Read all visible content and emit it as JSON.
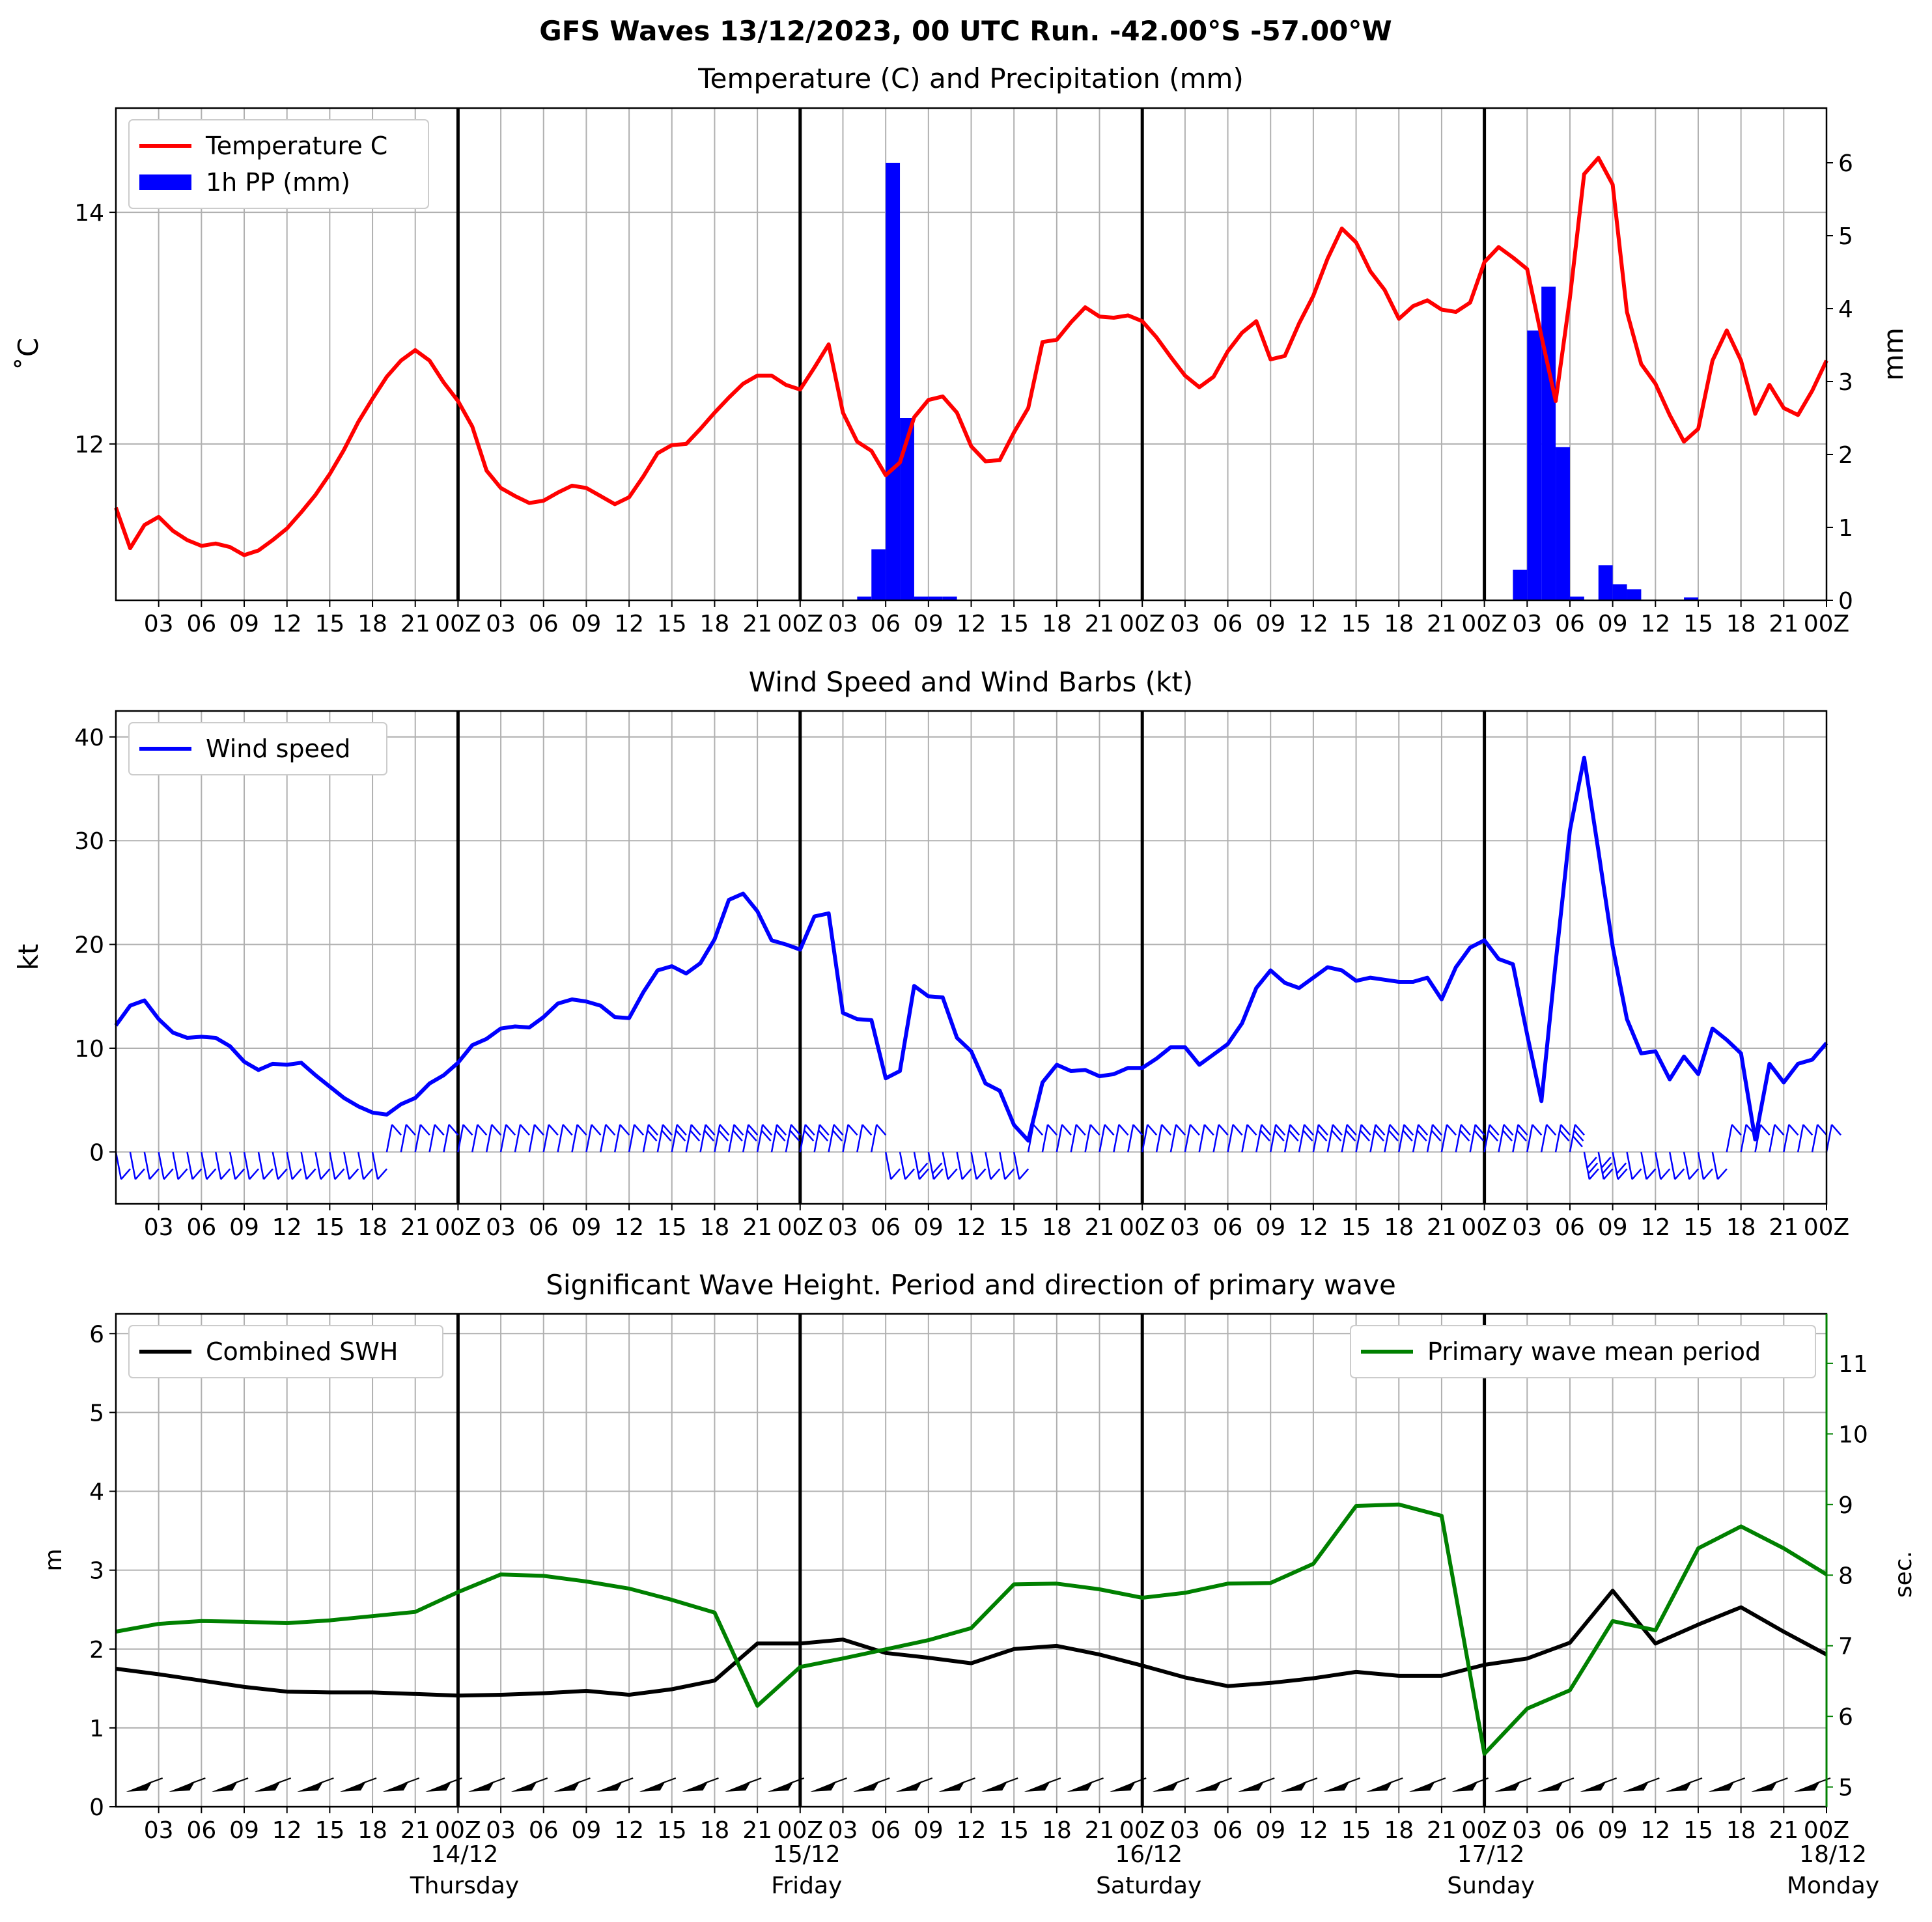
{
  "figure_title": "GFS Waves 13/12/2023, 00 UTC Run. -42.00°S -57.00°W",
  "hour_tick_labels": [
    "03",
    "06",
    "09",
    "12",
    "15",
    "18",
    "21",
    "00Z",
    "03",
    "06",
    "09",
    "12",
    "15",
    "18",
    "21",
    "00Z",
    "03",
    "06",
    "09",
    "12",
    "15",
    "18",
    "21",
    "00Z",
    "03",
    "06",
    "09",
    "12",
    "15",
    "18",
    "21",
    "00Z",
    "03",
    "06",
    "09",
    "12",
    "15",
    "18",
    "21",
    "00Z"
  ],
  "day_labels": [
    {
      "date": "14/12",
      "weekday": "Thursday"
    },
    {
      "date": "15/12",
      "weekday": "Friday"
    },
    {
      "date": "16/12",
      "weekday": "Saturday"
    },
    {
      "date": "17/12",
      "weekday": "Sunday"
    },
    {
      "date": "18/12",
      "weekday": "Monday"
    }
  ],
  "colors": {
    "temperature": "#ff0000",
    "precip": "#0000ff",
    "wind": "#0000ff",
    "swh": "#000000",
    "period": "#008000",
    "grid": "#b0b0b0"
  },
  "chart_data": [
    {
      "type": "line",
      "title": "Temperature (C) and Precipitation (mm)",
      "ylabel": "$^\\circ$C",
      "ylabel_display": "˚C",
      "y2label": "mm",
      "x_unit": "hours from 13/12/2023 00 UTC",
      "xlim": [
        0,
        120
      ],
      "ylim": [
        10.65,
        14.9
      ],
      "y2lim": [
        0,
        6.75
      ],
      "yticks": [
        12,
        14
      ],
      "y2ticks": [
        0,
        1,
        2,
        3,
        4,
        5,
        6
      ],
      "grid": true,
      "legend_position": "upper-left",
      "legend": [
        "Temperature C",
        "1h PP (mm)"
      ],
      "series": [
        {
          "name": "Temperature C",
          "kind": "line",
          "x": [
            0,
            1,
            2,
            3,
            4,
            5,
            6,
            7,
            8,
            9,
            10,
            11,
            12,
            13,
            14,
            15,
            16,
            17,
            18,
            19,
            20,
            21,
            22,
            23,
            24,
            25,
            26,
            27,
            28,
            29,
            30,
            31,
            32,
            33,
            34,
            35,
            36,
            37,
            38,
            39,
            40,
            41,
            42,
            43,
            44,
            45,
            46,
            47,
            48,
            49,
            50,
            51,
            52,
            53,
            54,
            55,
            56,
            57,
            58,
            59,
            60,
            61,
            62,
            63,
            64,
            65,
            66,
            67,
            68,
            69,
            70,
            71,
            72,
            73,
            74,
            75,
            76,
            77,
            78,
            79,
            80,
            81,
            82,
            83,
            84,
            85,
            86,
            87,
            88,
            89,
            90,
            91,
            92,
            93,
            94,
            95,
            96,
            97,
            98,
            99,
            100,
            101,
            102,
            103,
            104,
            105,
            106,
            107,
            108,
            109,
            110,
            111,
            112,
            113,
            114,
            115,
            116,
            117,
            118,
            119,
            120
          ],
          "values": [
            11.45,
            11.1,
            11.3,
            11.37,
            11.25,
            11.17,
            11.12,
            11.14,
            11.11,
            11.04,
            11.08,
            11.17,
            11.27,
            11.41,
            11.56,
            11.74,
            11.95,
            12.19,
            12.39,
            12.58,
            12.72,
            12.81,
            12.72,
            12.53,
            12.37,
            12.15,
            11.77,
            11.62,
            11.55,
            11.49,
            11.51,
            11.58,
            11.64,
            11.62,
            11.55,
            11.48,
            11.54,
            11.72,
            11.92,
            11.99,
            12.0,
            12.13,
            12.27,
            12.4,
            12.52,
            12.59,
            12.59,
            12.51,
            12.47,
            12.66,
            12.86,
            12.27,
            12.02,
            11.94,
            11.73,
            11.84,
            12.23,
            12.38,
            12.41,
            12.27,
            11.98,
            11.85,
            11.86,
            12.1,
            12.31,
            12.88,
            12.9,
            13.05,
            13.18,
            13.1,
            13.09,
            13.11,
            13.06,
            12.92,
            12.75,
            12.59,
            12.49,
            12.58,
            12.8,
            12.96,
            13.06,
            12.73,
            12.76,
            13.04,
            13.28,
            13.6,
            13.86,
            13.74,
            13.49,
            13.33,
            13.08,
            13.19,
            13.24,
            13.16,
            13.14,
            13.22,
            13.57,
            13.7,
            13.61,
            13.51,
            12.93,
            12.37,
            13.26,
            14.33,
            14.47,
            14.24,
            13.14,
            12.69,
            12.52,
            12.25,
            12.02,
            12.13,
            12.72,
            12.98,
            12.72,
            12.26,
            12.51,
            12.31,
            12.25,
            12.46,
            12.72
          ]
        },
        {
          "name": "1h PP (mm)",
          "kind": "bar",
          "axis": "right",
          "x": [
            53,
            54,
            55,
            56,
            57,
            58,
            59,
            99,
            100,
            101,
            102,
            103,
            105,
            106,
            107,
            111
          ],
          "values": [
            0.05,
            0.7,
            6.0,
            2.5,
            0.05,
            0.05,
            0.05,
            0.42,
            3.7,
            4.3,
            2.1,
            0.05,
            0.48,
            0.22,
            0.15,
            0.04
          ]
        }
      ]
    },
    {
      "type": "line",
      "title": "Wind Speed and Wind Barbs (kt)",
      "ylabel": "kt",
      "x_unit": "hours from 13/12/2023 00 UTC",
      "xlim": [
        0,
        120
      ],
      "ylim": [
        -5,
        42.5
      ],
      "yticks": [
        0,
        10,
        20,
        30,
        40
      ],
      "grid": true,
      "legend_position": "upper-left",
      "legend": [
        "Wind speed"
      ],
      "series": [
        {
          "name": "Wind speed",
          "x": [
            0,
            1,
            2,
            3,
            4,
            5,
            6,
            7,
            8,
            9,
            10,
            11,
            12,
            13,
            14,
            15,
            16,
            17,
            18,
            19,
            20,
            21,
            22,
            23,
            24,
            25,
            26,
            27,
            28,
            29,
            30,
            31,
            32,
            33,
            34,
            35,
            36,
            37,
            38,
            39,
            40,
            41,
            42,
            43,
            44,
            45,
            46,
            47,
            48,
            49,
            50,
            51,
            52,
            53,
            54,
            55,
            56,
            57,
            58,
            59,
            60,
            61,
            62,
            63,
            64,
            65,
            66,
            67,
            68,
            69,
            70,
            71,
            72,
            73,
            74,
            75,
            76,
            77,
            78,
            79,
            80,
            81,
            82,
            83,
            84,
            85,
            86,
            87,
            88,
            89,
            90,
            91,
            92,
            93,
            94,
            95,
            96,
            97,
            98,
            99,
            100,
            101,
            102,
            103,
            104,
            105,
            106,
            107,
            108,
            109,
            110,
            111,
            112,
            113,
            114,
            115,
            116,
            117,
            118,
            119,
            120
          ],
          "values": [
            12.2,
            14.1,
            14.6,
            12.8,
            11.5,
            11.0,
            11.1,
            11.0,
            10.2,
            8.7,
            7.9,
            8.5,
            8.4,
            8.6,
            7.4,
            6.3,
            5.2,
            4.4,
            3.8,
            3.6,
            4.6,
            5.2,
            6.6,
            7.4,
            8.6,
            10.3,
            10.9,
            11.9,
            12.1,
            12.0,
            13.0,
            14.3,
            14.7,
            14.5,
            14.1,
            13.0,
            12.9,
            15.4,
            17.5,
            17.9,
            17.2,
            18.2,
            20.5,
            24.3,
            24.9,
            23.2,
            20.4,
            20.0,
            19.5,
            22.7,
            23.0,
            13.4,
            12.8,
            12.7,
            7.1,
            7.8,
            16.0,
            15.0,
            14.9,
            11.0,
            9.7,
            6.6,
            5.9,
            2.6,
            1.1,
            6.7,
            8.4,
            7.8,
            7.9,
            7.3,
            7.5,
            8.1,
            8.1,
            9.0,
            10.1,
            10.1,
            8.4,
            9.4,
            10.4,
            12.4,
            15.8,
            17.5,
            16.3,
            15.8,
            16.8,
            17.8,
            17.5,
            16.5,
            16.8,
            16.6,
            16.4,
            16.4,
            16.8,
            14.7,
            17.8,
            19.7,
            20.4,
            18.6,
            18.1,
            11.3,
            4.9,
            18.3,
            31.0,
            38.0,
            29.0,
            19.8,
            12.8,
            9.5,
            9.7,
            7.0,
            9.2,
            7.5,
            11.9,
            10.8,
            9.5,
            1.2,
            8.5,
            6.7,
            8.5,
            8.9,
            10.5
          ]
        }
      ]
    },
    {
      "type": "line",
      "title": "Significant Wave Height. Period and direction of primary wave",
      "ylabel": "m",
      "y2label": "sec.",
      "x_unit": "hours from 13/12/2023 00 UTC",
      "xlim": [
        0,
        120
      ],
      "ylim": [
        0,
        6.25
      ],
      "y2lim": [
        4.72,
        11.7
      ],
      "yticks": [
        0,
        1,
        2,
        3,
        4,
        5,
        6
      ],
      "y2ticks": [
        5,
        6,
        7,
        8,
        9,
        10,
        11
      ],
      "grid": true,
      "legend": [
        "Combined SWH",
        "Primary wave mean period"
      ],
      "legend_positions": [
        "upper-left",
        "upper-right"
      ],
      "series": [
        {
          "name": "Combined SWH",
          "x": [
            0,
            3,
            6,
            9,
            12,
            15,
            18,
            21,
            24,
            27,
            30,
            33,
            36,
            39,
            42,
            45,
            48,
            51,
            54,
            57,
            60,
            63,
            66,
            69,
            72,
            75,
            78,
            81,
            84,
            87,
            90,
            93,
            96,
            99,
            102,
            105,
            108,
            111,
            114,
            117,
            120
          ],
          "values": [
            1.75,
            1.68,
            1.6,
            1.52,
            1.46,
            1.45,
            1.45,
            1.43,
            1.41,
            1.42,
            1.44,
            1.47,
            1.42,
            1.49,
            1.6,
            2.07,
            2.07,
            2.12,
            1.95,
            1.89,
            1.82,
            2.0,
            2.04,
            1.93,
            1.79,
            1.64,
            1.53,
            1.57,
            1.63,
            1.71,
            1.66,
            1.66,
            1.8,
            1.88,
            2.08,
            2.74,
            2.07,
            2.31,
            2.53,
            2.22,
            1.93
          ]
        },
        {
          "name": "Primary wave mean period",
          "axis": "right",
          "x": [
            0,
            3,
            6,
            9,
            12,
            15,
            18,
            21,
            24,
            27,
            30,
            33,
            36,
            39,
            42,
            45,
            48,
            51,
            54,
            57,
            60,
            63,
            66,
            69,
            72,
            75,
            78,
            81,
            84,
            87,
            90,
            93,
            96,
            99,
            102,
            105,
            108,
            111,
            114,
            117,
            120
          ],
          "values": [
            7.2,
            7.31,
            7.35,
            7.34,
            7.32,
            7.36,
            7.42,
            7.48,
            7.76,
            8.01,
            7.99,
            7.91,
            7.81,
            7.65,
            7.47,
            6.15,
            6.7,
            6.82,
            6.95,
            7.08,
            7.25,
            7.87,
            7.88,
            7.8,
            7.68,
            7.75,
            7.88,
            7.89,
            8.16,
            8.98,
            9.0,
            8.84,
            5.47,
            6.11,
            6.37,
            7.35,
            7.22,
            8.38,
            8.69,
            8.38,
            8.01
          ]
        }
      ]
    }
  ]
}
